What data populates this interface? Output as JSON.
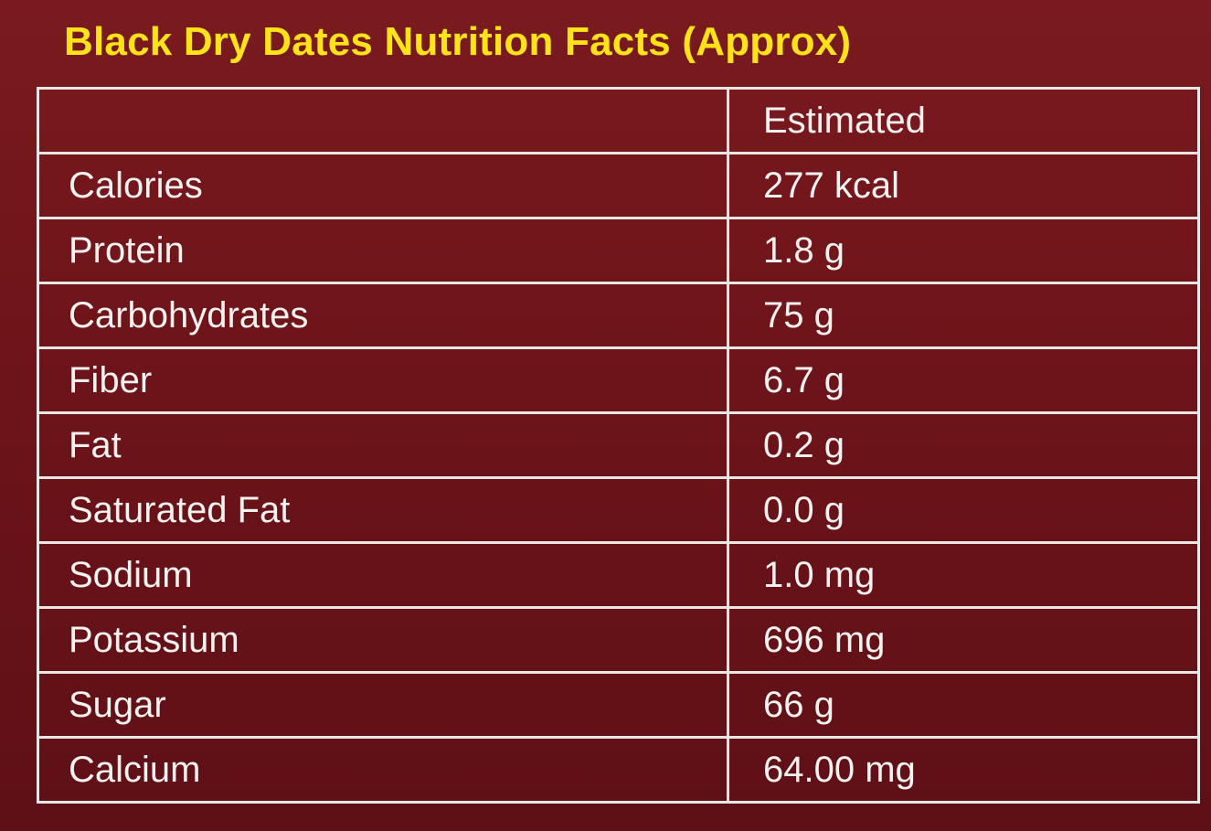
{
  "title": "Black Dry Dates Nutrition Facts (Approx)",
  "table": {
    "header": {
      "nutrient": "",
      "value": "Estimated"
    },
    "rows": [
      {
        "nutrient": "Calories",
        "value": "277 kcal"
      },
      {
        "nutrient": "Protein",
        "value": "1.8 g"
      },
      {
        "nutrient": "Carbohydrates",
        "value": "75 g"
      },
      {
        "nutrient": "Fiber",
        "value": "6.7 g"
      },
      {
        "nutrient": "Fat",
        "value": "0.2 g"
      },
      {
        "nutrient": "Saturated Fat",
        "value": "0.0 g"
      },
      {
        "nutrient": "Sodium",
        "value": "1.0 mg"
      },
      {
        "nutrient": "Potassium",
        "value": "696 mg"
      },
      {
        "nutrient": "Sugar",
        "value": "66 g"
      },
      {
        "nutrient": "Calcium",
        "value": "64.00 mg"
      }
    ]
  },
  "colors": {
    "background": "#6d141a",
    "title": "#ffe31a",
    "text": "#f4f1f1",
    "border": "#e9e6e6"
  }
}
